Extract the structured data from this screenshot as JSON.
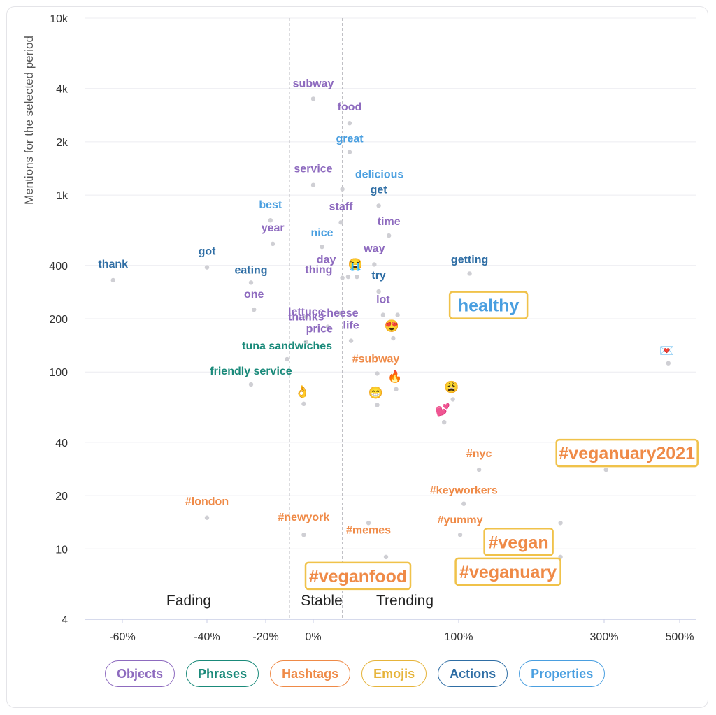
{
  "chart_data": {
    "type": "scatter",
    "title": "",
    "ylabel": "Mentions for the selected period",
    "xlabel": "",
    "y_scale": "log",
    "ylim": [
      4,
      10000
    ],
    "y_ticks": [
      {
        "value": 4,
        "label": "4"
      },
      {
        "value": 10,
        "label": "10"
      },
      {
        "value": 20,
        "label": "20"
      },
      {
        "value": 40,
        "label": "40"
      },
      {
        "value": 100,
        "label": "100"
      },
      {
        "value": 200,
        "label": "200"
      },
      {
        "value": 400,
        "label": "400"
      },
      {
        "value": 1000,
        "label": "1k"
      },
      {
        "value": 2000,
        "label": "2k"
      },
      {
        "value": 4000,
        "label": "4k"
      },
      {
        "value": 10000,
        "label": "10k"
      }
    ],
    "x_ticks": [
      {
        "value": -60,
        "label": "-60%"
      },
      {
        "value": -40,
        "label": "-40%"
      },
      {
        "value": -20,
        "label": "-20%"
      },
      {
        "value": 0,
        "label": "0%"
      },
      {
        "value": 100,
        "label": "100%"
      },
      {
        "value": 300,
        "label": "300%"
      },
      {
        "value": 500,
        "label": "500%"
      }
    ],
    "x_knots": [
      [
        -68,
        122
      ],
      [
        -60,
        175
      ],
      [
        -40,
        296
      ],
      [
        -20,
        380
      ],
      [
        0,
        448
      ],
      [
        100,
        656
      ],
      [
        300,
        864
      ],
      [
        500,
        972
      ],
      [
        520,
        983
      ]
    ],
    "zones": [
      {
        "name": "Fading",
        "label": "Fading"
      },
      {
        "name": "Stable",
        "label": "Stable"
      },
      {
        "name": "Trending",
        "label": "Trending"
      }
    ],
    "zone_boundaries": [
      -10,
      20
    ],
    "categories": [
      {
        "key": "objects",
        "label": "Objects",
        "color": "#8e6bbf"
      },
      {
        "key": "phrases",
        "label": "Phrases",
        "color": "#1a8a7a"
      },
      {
        "key": "hashtags",
        "label": "Hashtags",
        "color": "#ef8a47"
      },
      {
        "key": "emojis",
        "label": "Emojis",
        "color": "#e6b43a"
      },
      {
        "key": "actions",
        "label": "Actions",
        "color": "#2f6ea5"
      },
      {
        "key": "properties",
        "label": "Properties",
        "color": "#4a9fe0"
      }
    ],
    "points": [
      {
        "label": "subway",
        "category": "objects",
        "x": 0,
        "y": 3500
      },
      {
        "label": "food",
        "category": "objects",
        "x": 25,
        "y": 2550
      },
      {
        "label": "great",
        "category": "properties",
        "x": 25,
        "y": 1750
      },
      {
        "label": "service",
        "category": "objects",
        "x": 0,
        "y": 1140
      },
      {
        "label": "delicious",
        "category": "properties",
        "x": 20,
        "y": 1080
      },
      {
        "label": "get",
        "category": "actions",
        "x": 45,
        "y": 870
      },
      {
        "label": "best",
        "category": "properties",
        "x": -18,
        "y": 720
      },
      {
        "label": "staff",
        "category": "objects",
        "x": 19,
        "y": 700
      },
      {
        "label": "time",
        "category": "objects",
        "x": 52,
        "y": 590
      },
      {
        "label": "year",
        "category": "objects",
        "x": -17,
        "y": 530
      },
      {
        "label": "nice",
        "category": "properties",
        "x": 6,
        "y": 510
      },
      {
        "label": "way",
        "category": "objects",
        "x": 42,
        "y": 405
      },
      {
        "label": "got",
        "category": "actions",
        "x": -40,
        "y": 390
      },
      {
        "label": "thank",
        "category": "actions",
        "x": -62,
        "y": 330
      },
      {
        "label": "getting",
        "category": "actions",
        "x": 115,
        "y": 360
      },
      {
        "label": "eating",
        "category": "actions",
        "x": -25,
        "y": 320
      },
      {
        "label": "day",
        "category": "objects",
        "x": 20,
        "y": 340
      },
      {
        "label": "thing",
        "category": "objects",
        "x": 24,
        "y": 345
      },
      {
        "label": "try",
        "category": "actions",
        "x": 45,
        "y": 285
      },
      {
        "label": "one",
        "category": "objects",
        "x": -24,
        "y": 225
      },
      {
        "label": "thanks",
        "category": "objects",
        "x": -3,
        "y": 205
      },
      {
        "label": "cheese",
        "category": "objects",
        "x": 18,
        "y": 215
      },
      {
        "label": "lot",
        "category": "objects",
        "x": 48,
        "y": 210
      },
      {
        "label": "price",
        "category": "objects",
        "x": 10,
        "y": 180
      },
      {
        "label": "life",
        "category": "objects",
        "x": 26,
        "y": 150
      },
      {
        "label": "lettuce",
        "category": "objects",
        "x": -3,
        "y": 148
      },
      {
        "label": "tuna sandwiches",
        "category": "phrases",
        "x": -11,
        "y": 118
      },
      {
        "label": "friendly service",
        "category": "phrases",
        "x": -25,
        "y": 85
      },
      {
        "label": "#subway",
        "category": "hashtags",
        "x": 44,
        "y": 98
      },
      {
        "label": "#nyc",
        "category": "hashtags",
        "x": 128,
        "y": 28
      },
      {
        "label": "#veganuary2021",
        "category": "hashtags",
        "x": 305,
        "y": 28
      },
      {
        "label": "#keyworkers",
        "category": "hashtags",
        "x": 107,
        "y": 18
      },
      {
        "label": "#vegan",
        "category": "hashtags",
        "x": 240,
        "y": 14
      },
      {
        "label": "#london",
        "category": "hashtags",
        "x": -40,
        "y": 15
      },
      {
        "label": "#memes",
        "category": "hashtags",
        "x": 38,
        "y": 14
      },
      {
        "label": "#newyork",
        "category": "hashtags",
        "x": -4,
        "y": 12
      },
      {
        "label": "#yummy",
        "category": "hashtags",
        "x": 102,
        "y": 12
      },
      {
        "label": "#veganfood",
        "category": "hashtags",
        "x": 50,
        "y": 9
      },
      {
        "label": "#veganuary",
        "category": "hashtags",
        "x": 240,
        "y": 9
      },
      {
        "label": "healthy",
        "category": "properties",
        "x": 58,
        "y": 210
      },
      {
        "label": "😭",
        "category": "emojis",
        "x": 30,
        "y": 345
      },
      {
        "label": "😍",
        "category": "emojis",
        "x": 55,
        "y": 155
      },
      {
        "label": "🔥",
        "category": "emojis",
        "x": 57,
        "y": 80
      },
      {
        "label": "😁",
        "category": "emojis",
        "x": 44,
        "y": 65
      },
      {
        "label": "👌",
        "category": "emojis",
        "x": -4,
        "y": 66
      },
      {
        "label": "😩",
        "category": "emojis",
        "x": 96,
        "y": 70
      },
      {
        "label": "💕",
        "category": "emojis",
        "x": 90,
        "y": 52
      },
      {
        "label": "💌",
        "category": "emojis",
        "x": 470,
        "y": 112
      }
    ]
  },
  "legend": {
    "items": [
      {
        "key": "objects",
        "label": "Objects",
        "color": "#8e6bbf"
      },
      {
        "key": "phrases",
        "label": "Phrases",
        "color": "#1a8a7a"
      },
      {
        "key": "hashtags",
        "label": "Hashtags",
        "color": "#ef8a47"
      },
      {
        "key": "emojis",
        "label": "Emojis",
        "color": "#e6b43a"
      },
      {
        "key": "actions",
        "label": "Actions",
        "color": "#2f6ea5"
      },
      {
        "key": "properties",
        "label": "Properties",
        "color": "#4a9fe0"
      }
    ]
  }
}
